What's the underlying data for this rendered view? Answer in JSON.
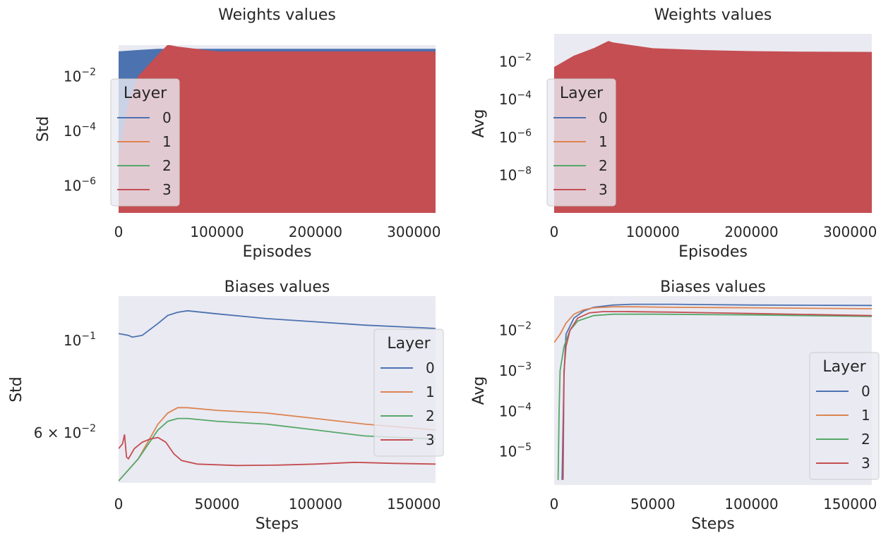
{
  "colors": {
    "0": "#4c72b0",
    "1": "#dd8452",
    "2": "#55a868",
    "3": "#c44e52",
    "axes_bg": "#eaeaf2"
  },
  "chart_data": [
    {
      "type": "area",
      "title": "Weights values",
      "xlabel": "Episodes",
      "ylabel": "Std",
      "yscale": "log",
      "xlim": [
        0,
        322000
      ],
      "ylim": [
        1e-07,
        0.14
      ],
      "xticks": [
        {
          "v": 0,
          "label": "0"
        },
        {
          "v": 100000,
          "label": "100000"
        },
        {
          "v": 200000,
          "label": "200000"
        },
        {
          "v": 300000,
          "label": "300000"
        }
      ],
      "yticks": [
        {
          "v": 1e-06,
          "base": "10",
          "exp": "−6"
        },
        {
          "v": 0.0001,
          "base": "10",
          "exp": "−4"
        },
        {
          "v": 0.01,
          "base": "10",
          "exp": "−2"
        }
      ],
      "legend": {
        "title": "Layer",
        "entries": [
          "0",
          "1",
          "2",
          "3"
        ],
        "position": "left"
      },
      "series": [
        {
          "name": "0",
          "color": "#4c72b0",
          "x": [
            0,
            20000,
            40000,
            60000,
            322000
          ],
          "y": [
            0.08,
            0.09,
            0.1,
            0.1,
            0.1
          ]
        },
        {
          "name": "1",
          "color": "#dd8452",
          "x": [
            0,
            322000
          ],
          "y": [
            1e-05,
            1e-05
          ]
        },
        {
          "name": "2",
          "color": "#55a868",
          "x": [
            0,
            10000,
            20000,
            40000,
            50000,
            60000,
            100000,
            150000,
            200000,
            250000,
            300000,
            322000
          ],
          "y": [
            1e-07,
            1e-05,
            0.0002,
            0.001,
            0.003,
            0.003,
            0.001,
            0.0005,
            0.0004,
            0.0003,
            0.0004,
            0.0004
          ]
        },
        {
          "name": "3",
          "color": "#c44e52",
          "x": [
            0,
            10000,
            20000,
            40000,
            50000,
            60000,
            100000,
            150000,
            200000,
            250000,
            300000,
            322000
          ],
          "y": [
            1e-05,
            0.001,
            0.01,
            0.06,
            0.14,
            0.12,
            0.08,
            0.08,
            0.08,
            0.08,
            0.08,
            0.08
          ]
        }
      ]
    },
    {
      "type": "area",
      "title": "Weights values",
      "xlabel": "Episodes",
      "ylabel": "Avg",
      "yscale": "log",
      "xlim": [
        0,
        322000
      ],
      "ylim": [
        1e-10,
        0.3
      ],
      "xticks": [
        {
          "v": 0,
          "label": "0"
        },
        {
          "v": 100000,
          "label": "100000"
        },
        {
          "v": 200000,
          "label": "200000"
        },
        {
          "v": 300000,
          "label": "300000"
        }
      ],
      "yticks": [
        {
          "v": 1e-08,
          "base": "10",
          "exp": "−8"
        },
        {
          "v": 1e-06,
          "base": "10",
          "exp": "−6"
        },
        {
          "v": 0.0001,
          "base": "10",
          "exp": "−4"
        },
        {
          "v": 0.01,
          "base": "10",
          "exp": "−2"
        }
      ],
      "legend": {
        "title": "Layer",
        "entries": [
          "0",
          "1",
          "2",
          "3"
        ],
        "position": "left"
      },
      "series": [
        {
          "name": "3",
          "color": "#c44e52",
          "x": [
            0,
            20000,
            40000,
            55000,
            60000,
            100000,
            150000,
            200000,
            250000,
            322000
          ],
          "y": [
            0.005,
            0.02,
            0.05,
            0.12,
            0.1,
            0.05,
            0.04,
            0.035,
            0.033,
            0.032
          ]
        }
      ]
    },
    {
      "type": "line",
      "title": "Biases values",
      "xlabel": "Steps",
      "ylabel": "Std",
      "yscale": "log",
      "xlim": [
        0,
        161000
      ],
      "ylim": [
        0.0455,
        0.128
      ],
      "xticks": [
        {
          "v": 0,
          "label": "0"
        },
        {
          "v": 50000,
          "label": "50000"
        },
        {
          "v": 100000,
          "label": "100000"
        },
        {
          "v": 150000,
          "label": "150000"
        }
      ],
      "yticks": [
        {
          "v": 0.06,
          "base": "6 × 10",
          "exp": "−2"
        },
        {
          "v": 0.1,
          "base": "10",
          "exp": "−1"
        }
      ],
      "legend": {
        "title": "Layer",
        "entries": [
          "0",
          "1",
          "2",
          "3"
        ],
        "position": "right"
      },
      "series": [
        {
          "name": "0",
          "color": "#4c72b0",
          "x": [
            0,
            5000,
            7000,
            12000,
            20000,
            25000,
            30000,
            35000,
            50000,
            75000,
            100000,
            125000,
            161000
          ],
          "y": [
            0.104,
            0.103,
            0.102,
            0.103,
            0.11,
            0.115,
            0.117,
            0.118,
            0.116,
            0.113,
            0.111,
            0.109,
            0.107
          ]
        },
        {
          "name": "1",
          "color": "#dd8452",
          "x": [
            0,
            10000,
            20000,
            25000,
            30000,
            35000,
            50000,
            75000,
            100000,
            125000,
            161000
          ],
          "y": [
            0.046,
            0.052,
            0.063,
            0.067,
            0.069,
            0.069,
            0.068,
            0.067,
            0.065,
            0.063,
            0.061
          ]
        },
        {
          "name": "2",
          "color": "#55a868",
          "x": [
            0,
            10000,
            20000,
            25000,
            30000,
            35000,
            50000,
            75000,
            100000,
            125000,
            161000
          ],
          "y": [
            0.046,
            0.052,
            0.061,
            0.064,
            0.065,
            0.065,
            0.064,
            0.063,
            0.061,
            0.059,
            0.058
          ]
        },
        {
          "name": "3",
          "color": "#c44e52",
          "x": [
            0,
            2000,
            3000,
            4000,
            5000,
            8000,
            12000,
            16000,
            20000,
            24000,
            28000,
            32000,
            40000,
            60000,
            80000,
            100000,
            120000,
            140000,
            161000
          ],
          "y": [
            0.055,
            0.0565,
            0.0595,
            0.0525,
            0.052,
            0.055,
            0.057,
            0.058,
            0.0585,
            0.057,
            0.0535,
            0.0515,
            0.0505,
            0.0501,
            0.0502,
            0.0505,
            0.051,
            0.0507,
            0.0505
          ]
        }
      ]
    },
    {
      "type": "line",
      "title": "Biases values",
      "xlabel": "Steps",
      "ylabel": "Avg",
      "yscale": "log",
      "xlim": [
        0,
        161000
      ],
      "ylim": [
        1.5e-06,
        0.07
      ],
      "xticks": [
        {
          "v": 0,
          "label": "0"
        },
        {
          "v": 50000,
          "label": "50000"
        },
        {
          "v": 100000,
          "label": "100000"
        },
        {
          "v": 150000,
          "label": "150000"
        }
      ],
      "yticks": [
        {
          "v": 1e-05,
          "base": "10",
          "exp": "−5"
        },
        {
          "v": 0.0001,
          "base": "10",
          "exp": "−4"
        },
        {
          "v": 0.001,
          "base": "10",
          "exp": "−3"
        },
        {
          "v": 0.01,
          "base": "10",
          "exp": "−2"
        }
      ],
      "legend": {
        "title": "Layer",
        "entries": [
          "0",
          "1",
          "2",
          "3"
        ],
        "position": "right"
      },
      "series": [
        {
          "name": "0",
          "color": "#4c72b0",
          "x": [
            4000,
            5000,
            6000,
            10000,
            15000,
            20000,
            30000,
            40000,
            60000,
            100000,
            161000
          ],
          "y": [
            2e-06,
            0.0008,
            0.008,
            0.02,
            0.03,
            0.037,
            0.042,
            0.044,
            0.044,
            0.042,
            0.041
          ]
        },
        {
          "name": "1",
          "color": "#dd8452",
          "x": [
            0,
            3000,
            6000,
            10000,
            15000,
            20000,
            30000,
            40000,
            60000,
            100000,
            161000
          ],
          "y": [
            0.005,
            0.008,
            0.015,
            0.025,
            0.032,
            0.036,
            0.038,
            0.038,
            0.037,
            0.036,
            0.034
          ]
        },
        {
          "name": "2",
          "color": "#55a868",
          "x": [
            2000,
            2500,
            3000,
            5000,
            8000,
            12000,
            20000,
            30000,
            50000,
            100000,
            161000
          ],
          "y": [
            2e-06,
            0.0001,
            0.001,
            0.004,
            0.01,
            0.017,
            0.023,
            0.025,
            0.025,
            0.024,
            0.022
          ]
        },
        {
          "name": "3",
          "color": "#c44e52",
          "x": [
            4500,
            5000,
            6000,
            8000,
            12000,
            18000,
            25000,
            35000,
            60000,
            100000,
            161000
          ],
          "y": [
            2e-06,
            0.001,
            0.004,
            0.01,
            0.02,
            0.027,
            0.029,
            0.029,
            0.028,
            0.026,
            0.023
          ]
        }
      ]
    }
  ]
}
